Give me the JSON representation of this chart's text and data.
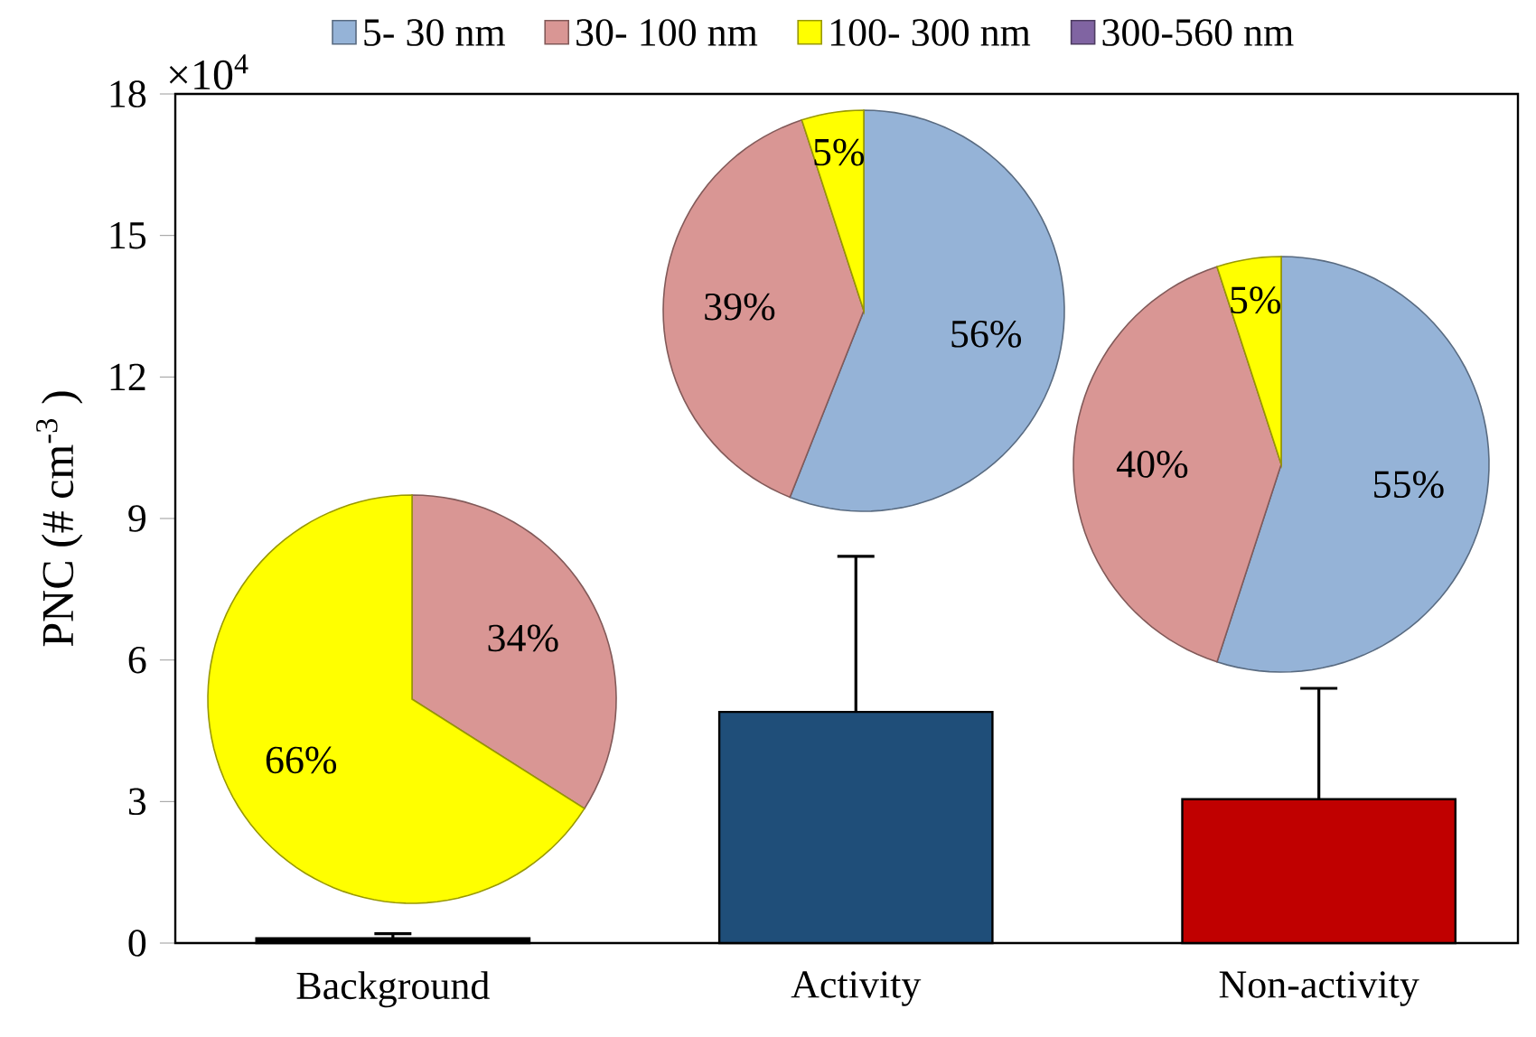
{
  "chart_data": [
    {
      "type": "bar",
      "ylabel": "PNC (# cm$^{-3}$ )",
      "annotations": [
        "×10$^{4}$"
      ],
      "categories": [
        "Background",
        "Activity",
        "Non-activity"
      ],
      "values": [
        0.1,
        4.9,
        3.05
      ],
      "colors": [
        "#000000",
        "#1f4e79",
        "#c00000"
      ],
      "errors": [
        [
          0.1,
          0.2
        ],
        [
          4.9,
          8.2
        ],
        [
          3.05,
          5.4
        ]
      ],
      "ylim": [
        0,
        18
      ],
      "yticks": [
        0,
        3,
        6,
        9,
        12,
        15,
        18
      ]
    },
    {
      "type": "pie",
      "categories": [
        "5- 30 nm",
        "30- 100 nm",
        "100- 300 nm",
        "300-560 nm"
      ],
      "colors": [
        "#95b3d7",
        "#d99694",
        "#ffff00",
        "#8064a2"
      ],
      "legend": "top",
      "series": [
        {
          "values": [
            0,
            34,
            66,
            0
          ],
          "value_labels": [
            null,
            "34%",
            "66%",
            null
          ]
        },
        {
          "values": [
            56,
            39,
            5,
            0
          ],
          "value_labels": [
            "56%",
            "39%",
            "5%",
            null
          ]
        },
        {
          "values": [
            55,
            40,
            5,
            0
          ],
          "value_labels": [
            "55%",
            "40%",
            "5%",
            null
          ]
        }
      ]
    }
  ]
}
